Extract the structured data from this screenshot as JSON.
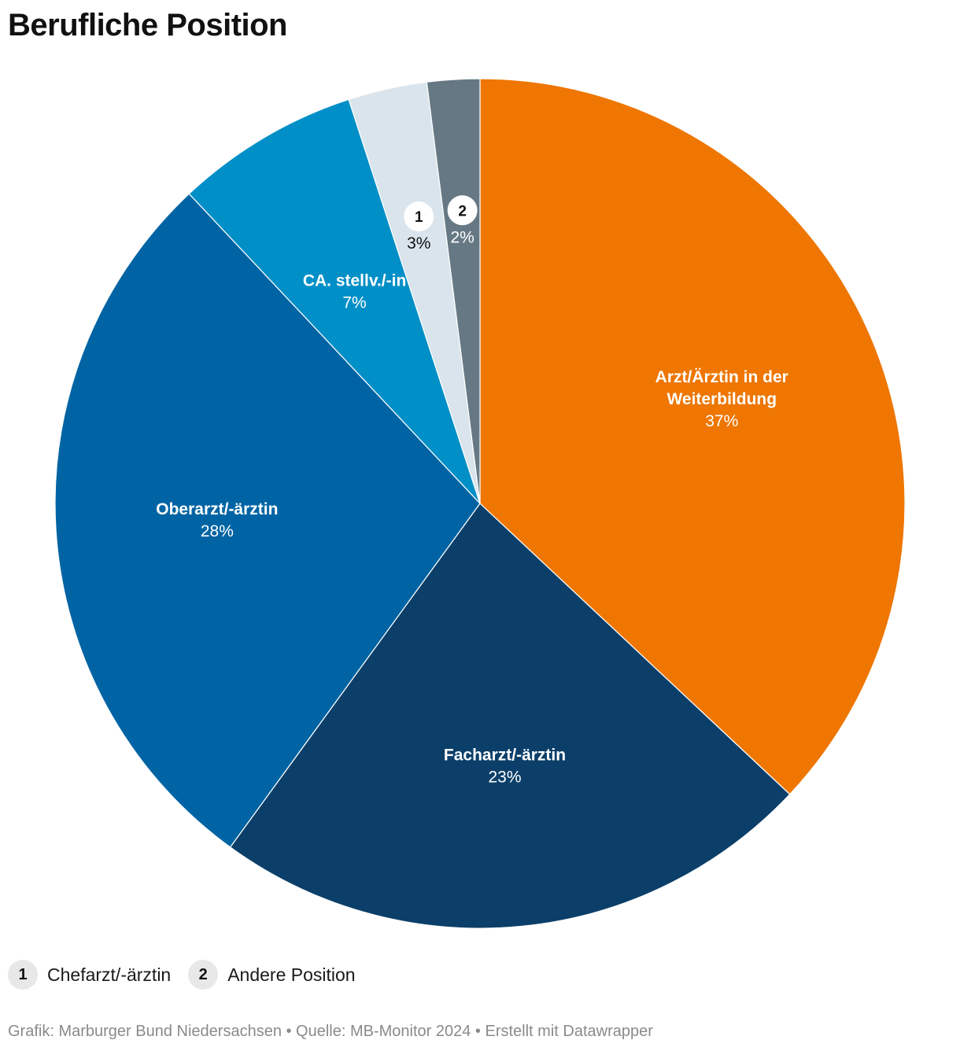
{
  "title": "Berufliche Position",
  "chart_data": {
    "type": "pie",
    "title": "Berufliche Position",
    "slices": [
      {
        "label": "Arzt/Ärztin in der Weiterbildung",
        "label_lines": [
          "Arzt/Ärztin in der",
          "Weiterbildung"
        ],
        "value": 37,
        "value_text": "37%",
        "color": "#ee7601",
        "text_color": "#ffffff"
      },
      {
        "label": "Facharzt/-ärztin",
        "label_lines": [
          "Facharzt/-ärztin"
        ],
        "value": 23,
        "value_text": "23%",
        "color": "#0b3f69",
        "text_color": "#ffffff"
      },
      {
        "label": "Oberarzt/-ärztin",
        "label_lines": [
          "Oberarzt/-ärztin"
        ],
        "value": 28,
        "value_text": "28%",
        "color": "#0064a4",
        "text_color": "#ffffff"
      },
      {
        "label": "CA. stellv./-in",
        "label_lines": [
          "CA. stellv./-in"
        ],
        "value": 7,
        "value_text": "7%",
        "color": "#008fc7",
        "text_color": "#ffffff"
      },
      {
        "label": "Chefarzt/-ärztin",
        "badge": "1",
        "value": 3,
        "value_text": "3%",
        "color": "#d9e4ec",
        "text_color": "#111111"
      },
      {
        "label": "Andere Position",
        "badge": "2",
        "value": 2,
        "value_text": "2%",
        "color": "#667884",
        "text_color": "#ffffff"
      }
    ]
  },
  "legend": [
    {
      "badge": "1",
      "label": "Chefarzt/-ärztin"
    },
    {
      "badge": "2",
      "label": "Andere Position"
    }
  ],
  "footer": "Grafik: Marburger Bund Niedersachsen • Quelle: MB-Monitor 2024 • Erstellt mit Datawrapper"
}
